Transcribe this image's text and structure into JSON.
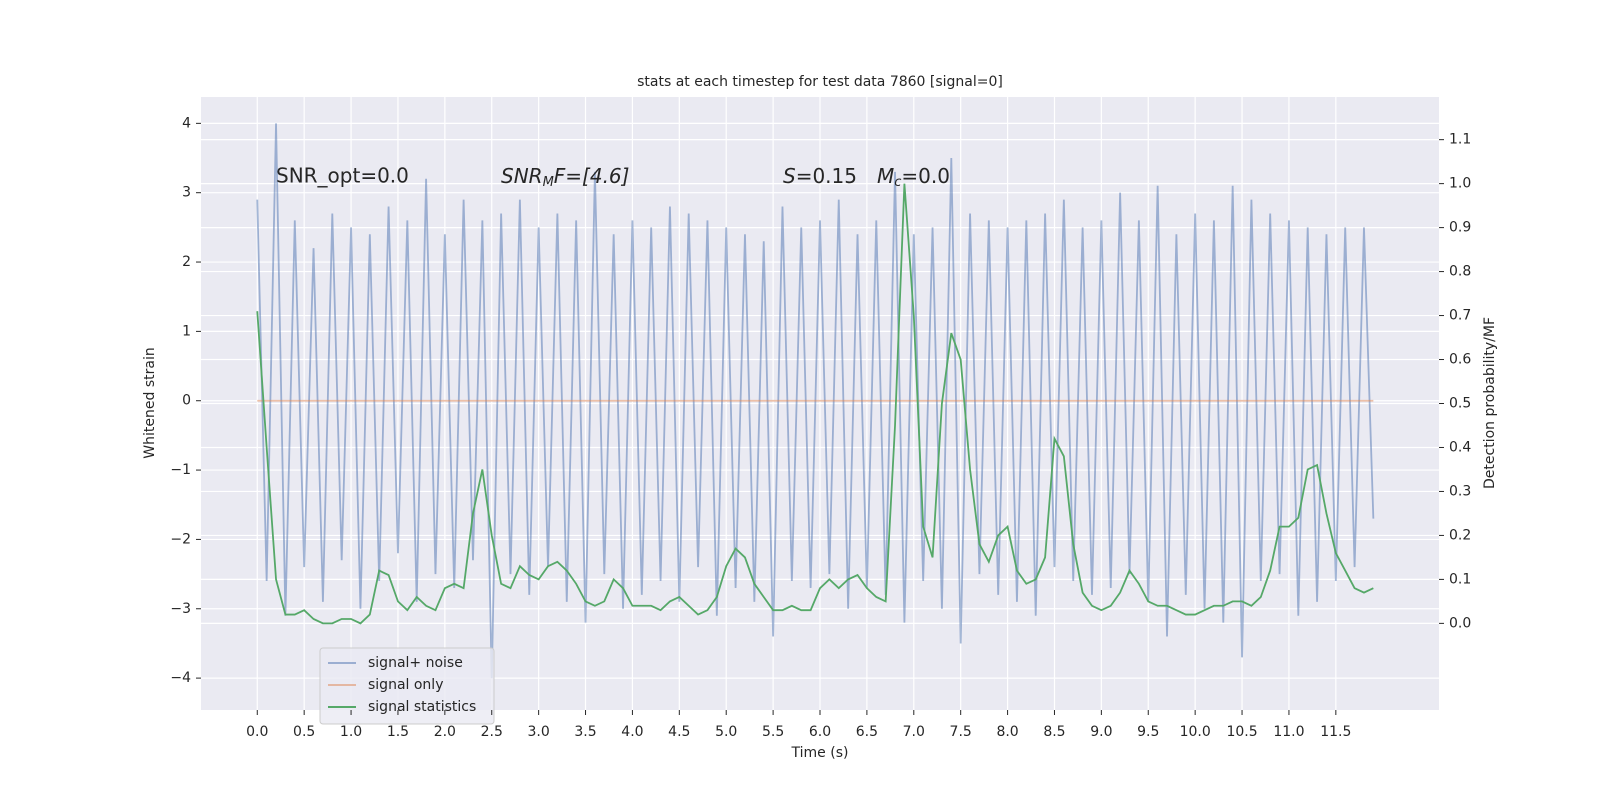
{
  "chart_data": {
    "type": "line",
    "title": "stats at each timestep for test data 7860 [signal=0]",
    "x_label": "Time (s)",
    "y_label": "Whitened strain",
    "y2_label": "Detection probability/MF",
    "annotations": [
      [
        "SNR_opt=0.0"
      ],
      [
        "SNR",
        "M",
        "F=[4.6]"
      ],
      [
        "S",
        "=0.15"
      ],
      [
        "M",
        "c",
        "=0.0"
      ]
    ],
    "background": "#eaeaf2",
    "grid": true,
    "legend": "lower left",
    "xlim": [
      -0.6,
      12.6
    ],
    "ylim": [
      -4.46,
      4.38
    ],
    "y2lim": [
      -0.197,
      1.197
    ],
    "xticks": [
      {
        "value": 0,
        "label": "0.0"
      },
      {
        "value": 0.5,
        "label": "0.5"
      },
      {
        "value": 1,
        "label": "1.0"
      },
      {
        "value": 1.5,
        "label": "1.5"
      },
      {
        "value": 2,
        "label": "2.0"
      },
      {
        "value": 2.5,
        "label": "2.5"
      },
      {
        "value": 3,
        "label": "3.0"
      },
      {
        "value": 3.5,
        "label": "3.5"
      },
      {
        "value": 4,
        "label": "4.0"
      },
      {
        "value": 4.5,
        "label": "4.5"
      },
      {
        "value": 5,
        "label": "5.0"
      },
      {
        "value": 5.5,
        "label": "5.5"
      },
      {
        "value": 6,
        "label": "6.0"
      },
      {
        "value": 6.5,
        "label": "6.5"
      },
      {
        "value": 7,
        "label": "7.0"
      },
      {
        "value": 7.5,
        "label": "7.5"
      },
      {
        "value": 8,
        "label": "8.0"
      },
      {
        "value": 8.5,
        "label": "8.5"
      },
      {
        "value": 9,
        "label": "9.0"
      },
      {
        "value": 9.5,
        "label": "9.5"
      },
      {
        "value": 10,
        "label": "10.0"
      },
      {
        "value": 10.5,
        "label": "10.5"
      },
      {
        "value": 11,
        "label": "11.0"
      },
      {
        "value": 11.5,
        "label": "11.5"
      }
    ],
    "yticks": [
      {
        "value": -4,
        "label": "−4"
      },
      {
        "value": -3,
        "label": "−3"
      },
      {
        "value": -2,
        "label": "−2"
      },
      {
        "value": -1,
        "label": "−1"
      },
      0,
      1,
      2,
      3,
      4
    ],
    "y2ticks": [
      {
        "value": 0,
        "label": "0.0"
      },
      {
        "value": 0.1,
        "label": "0.1"
      },
      {
        "value": 0.2,
        "label": "0.2"
      },
      {
        "value": 0.3,
        "label": "0.3"
      },
      {
        "value": 0.4,
        "label": "0.4"
      },
      {
        "value": 0.5,
        "label": "0.5"
      },
      {
        "value": 0.6,
        "label": "0.6"
      },
      {
        "value": 0.7,
        "label": "0.7"
      },
      {
        "value": 0.8,
        "label": "0.8"
      },
      {
        "value": 0.9,
        "label": "0.9"
      },
      {
        "value": 1.0,
        "label": "1.0"
      },
      {
        "value": 1.1,
        "label": "1.1"
      }
    ],
    "x": [
      0,
      0.1,
      0.2,
      0.3,
      0.4,
      0.5,
      0.6,
      0.7,
      0.8,
      0.9,
      1,
      1.1,
      1.2,
      1.3,
      1.4,
      1.5,
      1.6,
      1.7,
      1.8,
      1.9,
      2,
      2.1,
      2.2,
      2.3,
      2.4,
      2.5,
      2.6,
      2.7,
      2.8,
      2.9,
      3,
      3.1,
      3.2,
      3.3,
      3.4,
      3.5,
      3.6,
      3.7,
      3.8,
      3.9,
      4,
      4.1,
      4.2,
      4.3,
      4.4,
      4.5,
      4.6,
      4.7,
      4.8,
      4.9,
      5,
      5.1,
      5.2,
      5.3,
      5.4,
      5.5,
      5.6,
      5.7,
      5.8,
      5.9,
      6,
      6.1,
      6.2,
      6.3,
      6.4,
      6.5,
      6.6,
      6.7,
      6.8,
      6.9,
      7,
      7.1,
      7.2,
      7.3,
      7.4,
      7.5,
      7.6,
      7.7,
      7.8,
      7.9,
      8,
      8.1,
      8.2,
      8.3,
      8.4,
      8.5,
      8.6,
      8.7,
      8.8,
      8.9,
      9,
      9.1,
      9.2,
      9.3,
      9.4,
      9.5,
      9.6,
      9.7,
      9.8,
      9.9,
      10,
      10.1,
      10.2,
      10.3,
      10.4,
      10.5,
      10.6,
      10.7,
      10.8,
      10.9,
      11,
      11.1,
      11.2,
      11.3,
      11.4,
      11.5,
      11.6,
      11.7,
      11.8,
      11.9
    ],
    "series": [
      {
        "name": "signal+ noise",
        "color": "#4c72b0",
        "alpha": 0.5,
        "values": [
          2.9,
          -2.6,
          4.0,
          -3.1,
          2.6,
          -2.4,
          2.2,
          -2.9,
          2.7,
          -2.3,
          2.5,
          -3.0,
          2.4,
          -2.6,
          2.8,
          -2.2,
          2.6,
          -2.9,
          3.2,
          -2.5,
          2.4,
          -2.7,
          2.9,
          -2.3,
          2.6,
          -4.0,
          2.7,
          -2.5,
          2.9,
          -2.8,
          2.5,
          -2.4,
          2.7,
          -2.9,
          2.6,
          -3.2,
          3.3,
          -2.5,
          2.4,
          -3.0,
          2.6,
          -2.8,
          2.5,
          -2.6,
          2.8,
          -2.9,
          2.7,
          -2.4,
          2.6,
          -3.1,
          2.5,
          -2.7,
          2.4,
          -2.9,
          2.3,
          -3.4,
          2.8,
          -2.6,
          2.5,
          -2.7,
          2.6,
          -2.5,
          2.9,
          -3.0,
          2.4,
          -2.7,
          2.6,
          -2.8,
          3.3,
          -3.2,
          2.4,
          -2.6,
          2.5,
          -3.0,
          3.5,
          -3.5,
          2.7,
          -2.5,
          2.6,
          -2.8,
          2.5,
          -2.9,
          2.6,
          -3.1,
          2.7,
          -2.4,
          2.9,
          -2.6,
          2.5,
          -2.8,
          2.6,
          -2.7,
          3.0,
          -2.5,
          2.6,
          -2.9,
          3.1,
          -3.4,
          2.4,
          -2.8,
          2.7,
          -3.0,
          2.6,
          -3.2,
          3.1,
          -3.7,
          2.9,
          -2.6,
          2.7,
          -2.5,
          2.6,
          -3.1,
          2.5,
          -2.9,
          2.4,
          -2.6,
          2.5,
          -2.4,
          2.5,
          -1.7
        ]
      },
      {
        "name": "signal only",
        "color": "#dd8452",
        "alpha": 0.5,
        "values": [
          0,
          0,
          0,
          0,
          0,
          0,
          0,
          0,
          0,
          0,
          0,
          0,
          0,
          0,
          0,
          0,
          0,
          0,
          0,
          0,
          0,
          0,
          0,
          0,
          0,
          0,
          0,
          0,
          0,
          0,
          0,
          0,
          0,
          0,
          0,
          0,
          0,
          0,
          0,
          0,
          0,
          0,
          0,
          0,
          0,
          0,
          0,
          0,
          0,
          0,
          0,
          0,
          0,
          0,
          0,
          0,
          0,
          0,
          0,
          0,
          0,
          0,
          0,
          0,
          0,
          0,
          0,
          0,
          0,
          0,
          0,
          0,
          0,
          0,
          0,
          0,
          0,
          0,
          0,
          0,
          0,
          0,
          0,
          0,
          0,
          0,
          0,
          0,
          0,
          0,
          0,
          0,
          0,
          0,
          0,
          0,
          0,
          0,
          0,
          0,
          0,
          0,
          0,
          0,
          0,
          0,
          0,
          0,
          0,
          0,
          0,
          0,
          0,
          0,
          0,
          0,
          0,
          0,
          0,
          0
        ]
      },
      {
        "name": "signal statistics",
        "color": "#55a868",
        "alpha": 1,
        "axis": "y2",
        "values": [
          0.71,
          0.4,
          0.1,
          0.02,
          0.02,
          0.03,
          0.01,
          0.0,
          0.0,
          0.01,
          0.01,
          0.0,
          0.02,
          0.12,
          0.11,
          0.05,
          0.03,
          0.06,
          0.04,
          0.03,
          0.08,
          0.09,
          0.08,
          0.25,
          0.35,
          0.2,
          0.09,
          0.08,
          0.13,
          0.11,
          0.1,
          0.13,
          0.14,
          0.12,
          0.09,
          0.05,
          0.04,
          0.05,
          0.1,
          0.08,
          0.04,
          0.04,
          0.04,
          0.03,
          0.05,
          0.06,
          0.04,
          0.02,
          0.03,
          0.06,
          0.13,
          0.17,
          0.15,
          0.09,
          0.06,
          0.03,
          0.03,
          0.04,
          0.03,
          0.03,
          0.08,
          0.1,
          0.08,
          0.1,
          0.11,
          0.08,
          0.06,
          0.05,
          0.45,
          1.0,
          0.7,
          0.22,
          0.15,
          0.5,
          0.66,
          0.6,
          0.35,
          0.18,
          0.14,
          0.2,
          0.22,
          0.12,
          0.09,
          0.1,
          0.15,
          0.42,
          0.38,
          0.18,
          0.07,
          0.04,
          0.03,
          0.04,
          0.07,
          0.12,
          0.09,
          0.05,
          0.04,
          0.04,
          0.03,
          0.02,
          0.02,
          0.03,
          0.04,
          0.04,
          0.05,
          0.05,
          0.04,
          0.06,
          0.12,
          0.22,
          0.22,
          0.24,
          0.35,
          0.36,
          0.25,
          0.16,
          0.12,
          0.08,
          0.07,
          0.08
        ]
      }
    ]
  }
}
